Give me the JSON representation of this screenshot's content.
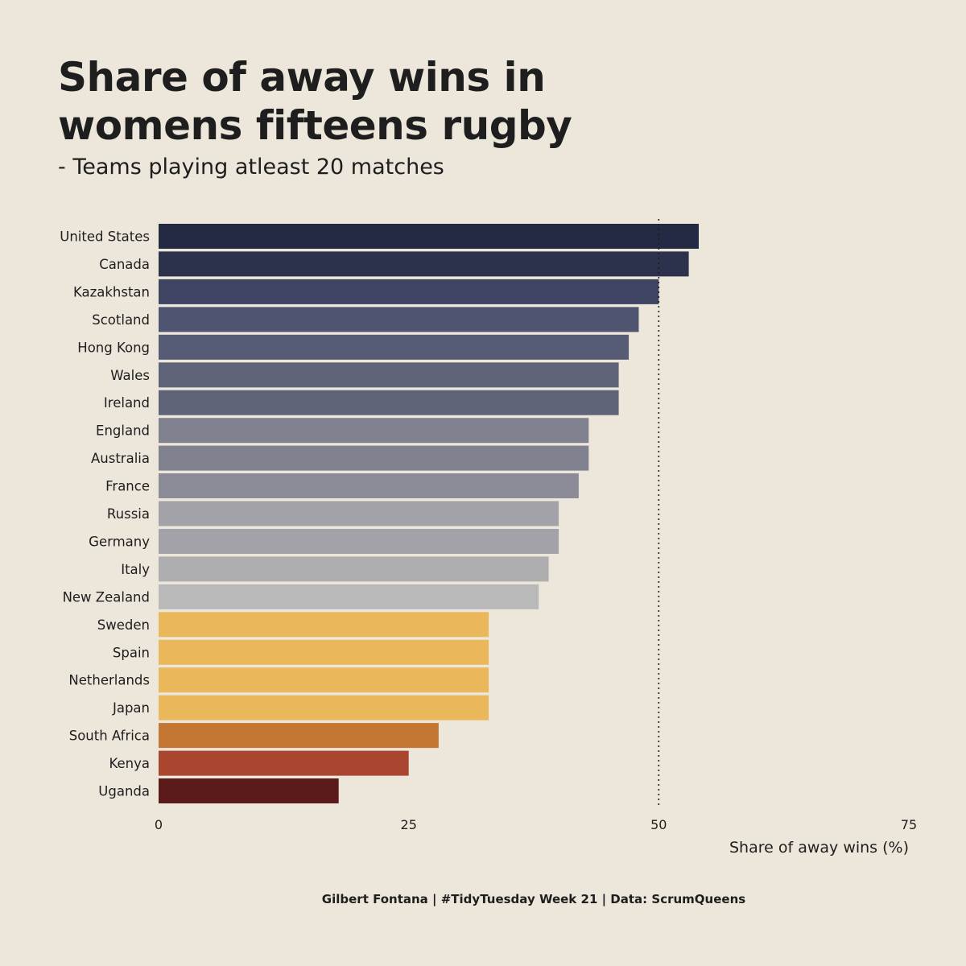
{
  "title_line1": "Share of away wins in",
  "title_line2": "womens fifteens rugby",
  "subtitle": "- Teams playing atleast 20 matches",
  "caption": "Gilbert Fontana | #TidyTuesday Week 21 | Data: ScrumQueens",
  "chart_data": {
    "type": "bar",
    "orientation": "horizontal",
    "title": "Share of away wins in womens fifteens rugby",
    "subtitle": "- Teams playing atleast 20 matches",
    "xlabel": "Share of away wins (%)",
    "ylabel": "",
    "xlim": [
      0,
      75
    ],
    "xticks": [
      0,
      25,
      50,
      75
    ],
    "reference_line": 50,
    "grid": false,
    "categories": [
      "United States",
      "Canada",
      "Kazakhstan",
      "Scotland",
      "Hong Kong",
      "Wales",
      "Ireland",
      "England",
      "Australia",
      "France",
      "Russia",
      "Germany",
      "Italy",
      "New Zealand",
      "Sweden",
      "Spain",
      "Netherlands",
      "Japan",
      "South Africa",
      "Kenya",
      "Uganda"
    ],
    "values": [
      54,
      53,
      50,
      48,
      47,
      46,
      46,
      43,
      43,
      42,
      40,
      40,
      39,
      38,
      33,
      33,
      33,
      33,
      28,
      25,
      18
    ],
    "colors": [
      "#252A44",
      "#2D324C",
      "#3E4462",
      "#4F5570",
      "#565C75",
      "#5E6378",
      "#5E6378",
      "#80828F",
      "#80828F",
      "#8B8C98",
      "#A2A2A8",
      "#A2A2A8",
      "#AEADB0",
      "#B9B9BA",
      "#EBB75B",
      "#EBB75B",
      "#EBB75B",
      "#EBB75B",
      "#C47633",
      "#AA462F",
      "#5A1A19"
    ]
  }
}
